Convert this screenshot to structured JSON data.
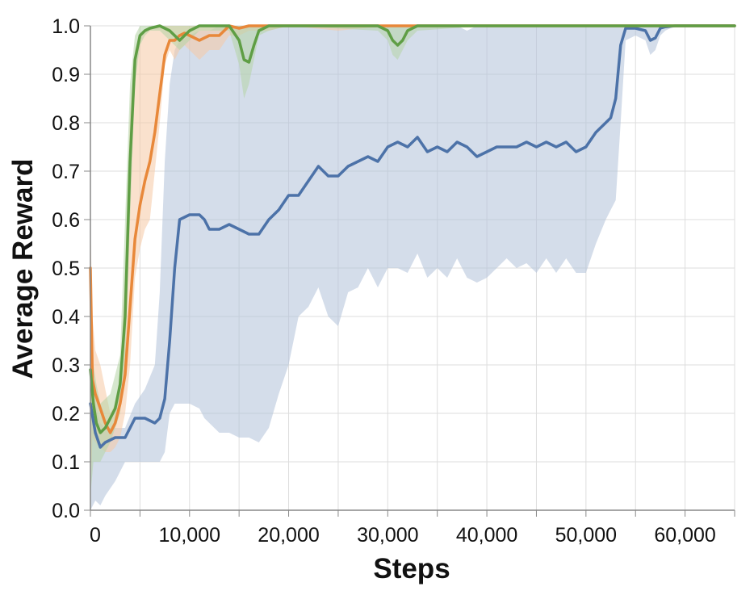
{
  "chart_data": {
    "type": "line",
    "title": "",
    "xlabel": "Steps",
    "ylabel": "Average Reward",
    "xlim": [
      0,
      65000
    ],
    "ylim": [
      0,
      1.0
    ],
    "grid": true,
    "legend": "none",
    "x_ticks": [
      0,
      10000,
      20000,
      30000,
      40000,
      50000,
      60000
    ],
    "x_tick_labels": [
      "0",
      "10,000",
      "20,000",
      "30,000",
      "40,000",
      "50,000",
      "60,000"
    ],
    "y_ticks": [
      0,
      0.1,
      0.2,
      0.3,
      0.4,
      0.5,
      0.6,
      0.7,
      0.8,
      0.9,
      1.0
    ],
    "y_tick_labels": [
      "0.0",
      "0.1",
      "0.2",
      "0.3",
      "0.4",
      "0.5",
      "0.6",
      "0.7",
      "0.8",
      "0.9",
      "1.0"
    ],
    "series": [
      {
        "color": "#4c72a8",
        "band_color": "#b0c1d8",
        "x": [
          0,
          500,
          1000,
          1500,
          2500,
          3500,
          4500,
          5500,
          6500,
          7000,
          7500,
          8000,
          8500,
          9000,
          10000,
          11000,
          11500,
          12000,
          13000,
          14000,
          15000,
          16000,
          17000,
          18000,
          19000,
          20000,
          21000,
          22000,
          23000,
          24000,
          25000,
          26000,
          27000,
          28000,
          29000,
          30000,
          31000,
          32000,
          33000,
          34000,
          35000,
          36000,
          37000,
          38000,
          39000,
          40000,
          41000,
          42000,
          43000,
          44000,
          45000,
          46000,
          47000,
          48000,
          49000,
          50000,
          51000,
          52000,
          52500,
          53000,
          53500,
          54000,
          55000,
          56000,
          56500,
          57000,
          57500,
          58000,
          59000,
          60000,
          65000
        ],
        "y": [
          0.22,
          0.16,
          0.13,
          0.14,
          0.15,
          0.15,
          0.19,
          0.19,
          0.18,
          0.19,
          0.23,
          0.35,
          0.5,
          0.6,
          0.61,
          0.61,
          0.6,
          0.58,
          0.58,
          0.59,
          0.58,
          0.57,
          0.57,
          0.6,
          0.62,
          0.65,
          0.65,
          0.68,
          0.71,
          0.69,
          0.69,
          0.71,
          0.72,
          0.73,
          0.72,
          0.75,
          0.76,
          0.75,
          0.77,
          0.74,
          0.75,
          0.74,
          0.76,
          0.75,
          0.73,
          0.74,
          0.75,
          0.75,
          0.75,
          0.76,
          0.75,
          0.76,
          0.75,
          0.76,
          0.74,
          0.75,
          0.78,
          0.8,
          0.81,
          0.85,
          0.96,
          0.995,
          0.995,
          0.99,
          0.97,
          0.975,
          0.995,
          0.998,
          1.0,
          1.0,
          1.0
        ],
        "lower": [
          0.0,
          0.02,
          0.01,
          0.03,
          0.06,
          0.1,
          0.1,
          0.1,
          0.1,
          0.1,
          0.12,
          0.2,
          0.22,
          0.22,
          0.22,
          0.21,
          0.19,
          0.18,
          0.16,
          0.16,
          0.15,
          0.15,
          0.14,
          0.17,
          0.24,
          0.3,
          0.4,
          0.42,
          0.46,
          0.4,
          0.38,
          0.45,
          0.46,
          0.5,
          0.46,
          0.5,
          0.5,
          0.49,
          0.53,
          0.48,
          0.5,
          0.48,
          0.52,
          0.48,
          0.47,
          0.48,
          0.5,
          0.52,
          0.5,
          0.51,
          0.49,
          0.52,
          0.49,
          0.52,
          0.49,
          0.49,
          0.55,
          0.6,
          0.62,
          0.64,
          0.8,
          0.97,
          0.98,
          0.97,
          0.94,
          0.95,
          0.98,
          0.99,
          1.0,
          1.0,
          1.0
        ],
        "upper": [
          0.3,
          0.22,
          0.18,
          0.17,
          0.17,
          0.17,
          0.22,
          0.25,
          0.3,
          0.45,
          0.72,
          0.88,
          0.95,
          0.97,
          0.98,
          0.99,
          0.99,
          0.99,
          1.0,
          1.0,
          1.0,
          1.0,
          1.0,
          1.0,
          1.0,
          1.0,
          1.0,
          1.0,
          1.0,
          1.0,
          1.0,
          1.0,
          1.0,
          1.0,
          1.0,
          1.0,
          1.0,
          1.0,
          1.0,
          1.0,
          1.0,
          1.0,
          1.0,
          0.99,
          1.0,
          1.0,
          1.0,
          1.0,
          1.0,
          1.0,
          1.0,
          1.0,
          1.0,
          1.0,
          1.0,
          1.0,
          1.0,
          1.0,
          1.0,
          1.0,
          1.0,
          1.0,
          1.0,
          1.0,
          1.0,
          1.0,
          1.0,
          1.0,
          1.0,
          1.0,
          1.0
        ]
      },
      {
        "color": "#e8883a",
        "band_color": "#f5c9a4",
        "x": [
          0,
          200,
          500,
          1000,
          1500,
          2000,
          2500,
          3000,
          3500,
          4000,
          4500,
          5000,
          5500,
          6000,
          6500,
          7000,
          7500,
          8000,
          8500,
          9000,
          9500,
          10000,
          11000,
          12000,
          13000,
          14000,
          15000,
          16000,
          17000,
          18000,
          20000,
          25000,
          30000,
          40000,
          50000,
          60000,
          65000
        ],
        "y": [
          0.5,
          0.27,
          0.24,
          0.21,
          0.18,
          0.16,
          0.18,
          0.22,
          0.28,
          0.42,
          0.56,
          0.63,
          0.68,
          0.72,
          0.78,
          0.86,
          0.94,
          0.97,
          0.97,
          0.98,
          0.985,
          0.98,
          0.97,
          0.98,
          0.98,
          1.0,
          0.995,
          1.0,
          1.0,
          1.0,
          1.0,
          1.0,
          1.0,
          1.0,
          1.0,
          1.0,
          1.0
        ],
        "lower": [
          0.02,
          0.15,
          0.14,
          0.13,
          0.12,
          0.12,
          0.13,
          0.15,
          0.2,
          0.3,
          0.48,
          0.54,
          0.58,
          0.6,
          0.7,
          0.8,
          0.92,
          0.95,
          0.93,
          0.95,
          0.96,
          0.95,
          0.93,
          0.95,
          0.95,
          0.98,
          0.98,
          0.99,
          0.99,
          0.99,
          1.0,
          0.99,
          1.0,
          1.0,
          1.0,
          1.0,
          1.0
        ],
        "upper": [
          0.6,
          0.4,
          0.33,
          0.3,
          0.25,
          0.2,
          0.22,
          0.26,
          0.5,
          0.82,
          0.95,
          0.98,
          0.99,
          0.995,
          1.0,
          1.0,
          1.0,
          1.0,
          1.0,
          1.0,
          1.0,
          1.0,
          1.0,
          1.0,
          1.0,
          1.0,
          1.0,
          1.0,
          1.0,
          1.0,
          1.0,
          1.0,
          1.0,
          1.0,
          1.0,
          1.0,
          1.0
        ]
      },
      {
        "color": "#5f9e45",
        "band_color": "#b5d3a6",
        "x": [
          0,
          300,
          600,
          1000,
          1500,
          2000,
          2500,
          3000,
          3500,
          4000,
          4500,
          5000,
          5500,
          6000,
          7000,
          8000,
          9000,
          10000,
          11000,
          12000,
          14000,
          15000,
          15500,
          16000,
          16500,
          17000,
          18000,
          20000,
          29000,
          30000,
          30500,
          31000,
          31500,
          32000,
          33000,
          40000,
          50000,
          60000,
          65000
        ],
        "y": [
          0.29,
          0.22,
          0.18,
          0.16,
          0.17,
          0.19,
          0.21,
          0.26,
          0.4,
          0.72,
          0.93,
          0.98,
          0.99,
          0.995,
          1.0,
          0.99,
          0.97,
          0.99,
          1.0,
          1.0,
          1.0,
          0.97,
          0.93,
          0.925,
          0.96,
          0.99,
          1.0,
          1.0,
          1.0,
          0.99,
          0.97,
          0.96,
          0.97,
          0.99,
          1.0,
          1.0,
          1.0,
          1.0,
          1.0
        ],
        "lower": [
          0.03,
          0.1,
          0.1,
          0.1,
          0.12,
          0.14,
          0.17,
          0.2,
          0.3,
          0.6,
          0.88,
          0.96,
          0.98,
          0.99,
          0.99,
          0.97,
          0.95,
          0.97,
          0.99,
          0.99,
          0.99,
          0.92,
          0.85,
          0.88,
          0.93,
          0.98,
          0.99,
          1.0,
          0.99,
          0.97,
          0.94,
          0.93,
          0.95,
          0.97,
          0.99,
          1.0,
          1.0,
          1.0,
          1.0
        ],
        "upper": [
          0.31,
          0.3,
          0.26,
          0.22,
          0.23,
          0.24,
          0.28,
          0.32,
          0.6,
          0.88,
          0.98,
          1.0,
          1.0,
          1.0,
          1.0,
          1.0,
          1.0,
          1.0,
          1.0,
          1.0,
          1.0,
          1.0,
          1.0,
          1.0,
          1.0,
          1.0,
          1.0,
          1.0,
          1.0,
          1.0,
          1.0,
          1.0,
          1.0,
          1.0,
          1.0,
          1.0,
          1.0,
          1.0,
          1.0
        ]
      }
    ]
  }
}
